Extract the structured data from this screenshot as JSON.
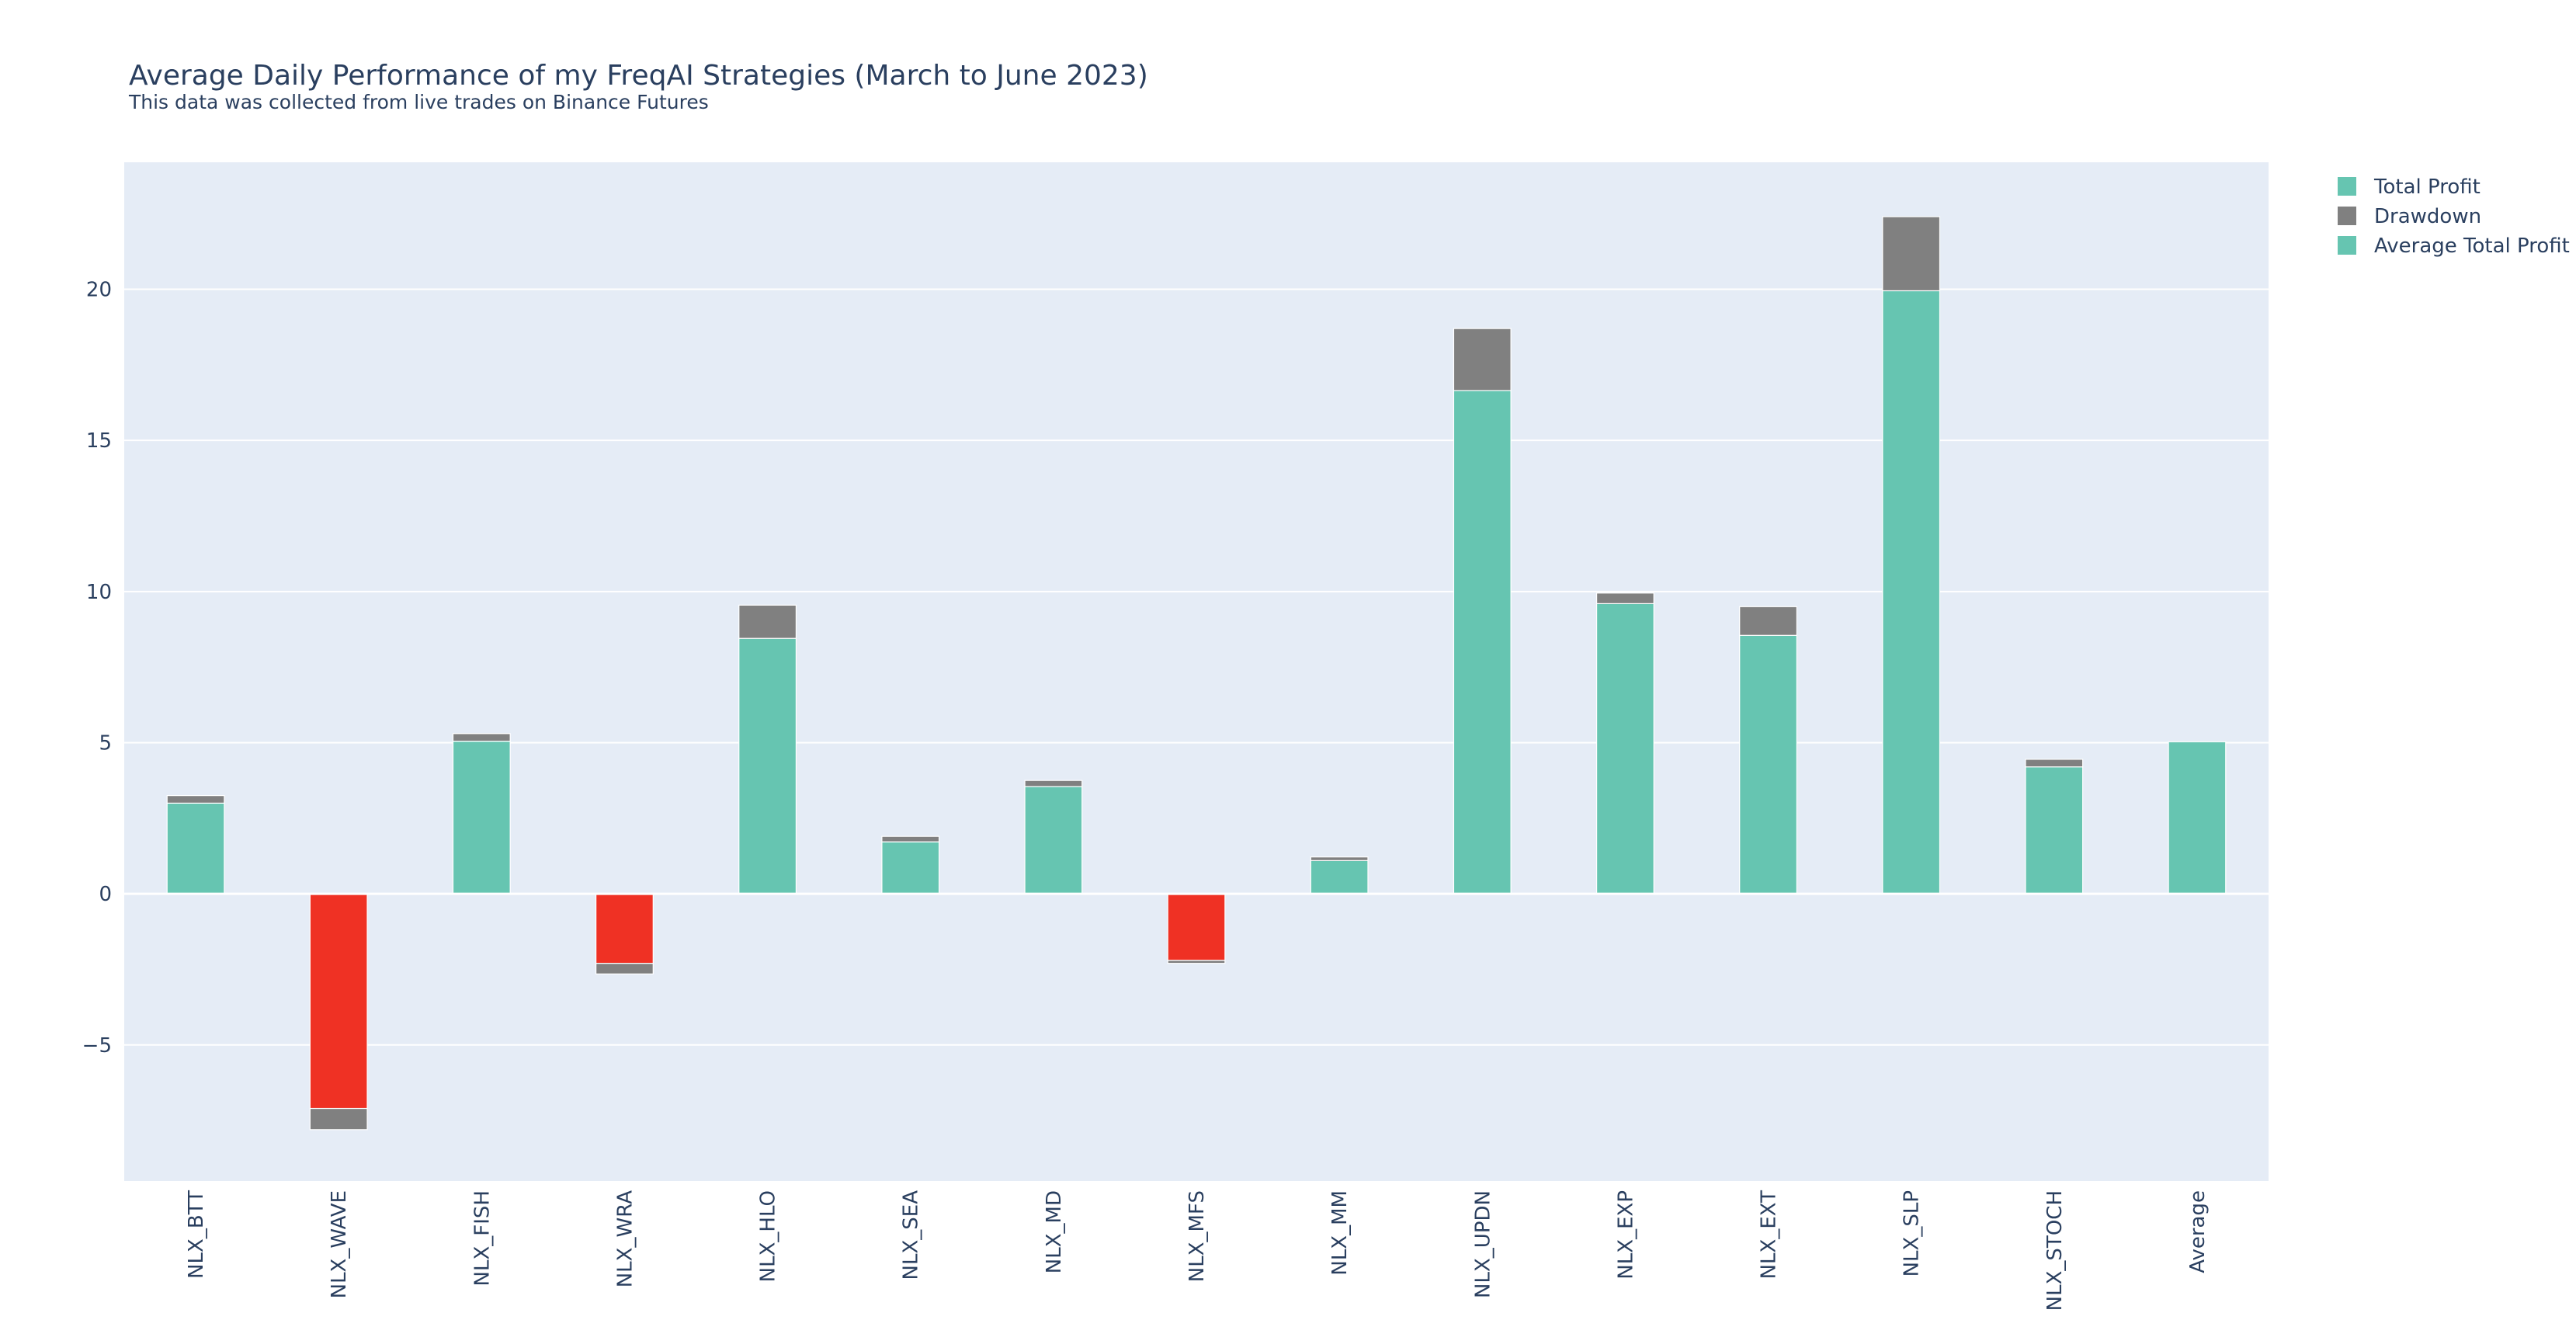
{
  "chart_data": {
    "type": "bar",
    "barmode": "stack",
    "title": "Average Daily Performance of my FreqAI Strategies (March to June 2023)",
    "subtitle": "This data was collected from live trades on Binance Futures",
    "categories": [
      "NLX_BTT",
      "NLX_WAVE",
      "NLX_FISH",
      "NLX_WRA",
      "NLX_HLO",
      "NLX_SEA",
      "NLX_MD",
      "NLX_MFS",
      "NLX_MM",
      "NLX_UPDN",
      "NLX_EXP",
      "NLX_EXT",
      "NLX_SLP",
      "NLX_STOCH",
      "Average"
    ],
    "series": [
      {
        "name": "Total Profit",
        "color": "#66c5b1",
        "negative_color": "#ef3124",
        "values": [
          3.0,
          -7.1,
          5.05,
          -2.3,
          8.45,
          1.72,
          3.55,
          -2.2,
          1.1,
          16.65,
          9.6,
          8.55,
          19.95,
          4.2,
          null
        ]
      },
      {
        "name": "Drawdown",
        "color": "#808080",
        "values": [
          0.25,
          -0.7,
          0.25,
          -0.35,
          1.1,
          0.18,
          0.2,
          -0.1,
          0.12,
          2.05,
          0.35,
          0.95,
          2.45,
          0.25,
          null
        ]
      },
      {
        "name": "Average Total Profit",
        "color": "#66c5b1",
        "values": [
          null,
          null,
          null,
          null,
          null,
          null,
          null,
          null,
          null,
          null,
          null,
          null,
          null,
          null,
          5.03
        ]
      }
    ],
    "yticks": [
      -5,
      0,
      5,
      10,
      15,
      20
    ],
    "ytick_labels": [
      "−5",
      "0",
      "5",
      "10",
      "15",
      "20"
    ],
    "ylim": [
      -9.5,
      24.2
    ],
    "grid": true,
    "legend_position": "top-right",
    "plot_bgcolor": "#e5ecf6"
  }
}
